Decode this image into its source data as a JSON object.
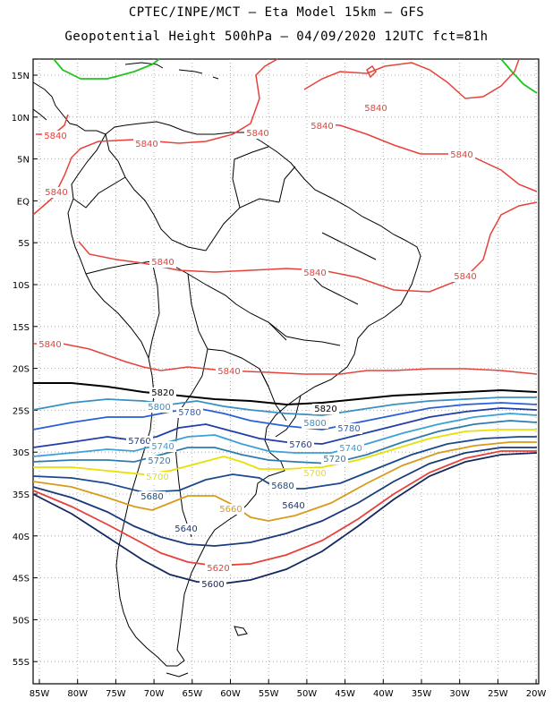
{
  "header": {
    "line1": "CPTEC/INPE/MCT –  Eta Model 15km – GFS",
    "line2": "Geopotential Height 500hPa – 04/09/2020 12UTC fct=81h"
  },
  "axes": {
    "lat_labels": [
      "15N",
      "10N",
      "5N",
      "EQ",
      "5S",
      "10S",
      "15S",
      "20S",
      "25S",
      "30S",
      "35S",
      "40S",
      "45S",
      "50S",
      "55S"
    ],
    "lon_labels": [
      "85W",
      "80W",
      "75W",
      "70W",
      "65W",
      "60W",
      "55W",
      "50W",
      "45W",
      "40W",
      "35W",
      "30W",
      "25W",
      "20W"
    ],
    "grid": "dotted"
  },
  "contour_labels": [
    {
      "text": "5840",
      "color": "#e8413a"
    },
    {
      "text": "5840",
      "color": "#e8413a"
    },
    {
      "text": "5840",
      "color": "#e8413a"
    },
    {
      "text": "5840",
      "color": "#e8413a"
    },
    {
      "text": "5840",
      "color": "#e8413a"
    },
    {
      "text": "5840",
      "color": "#e8413a"
    },
    {
      "text": "5840",
      "color": "#e8413a"
    },
    {
      "text": "5840",
      "color": "#e8413a"
    },
    {
      "text": "5840",
      "color": "#e8413a"
    },
    {
      "text": "5840",
      "color": "#e8413a"
    },
    {
      "text": "5840",
      "color": "#e8413a"
    },
    {
      "text": "5840",
      "color": "#e8413a"
    },
    {
      "text": "5820",
      "color": "#000000"
    },
    {
      "text": "5820",
      "color": "#000000"
    },
    {
      "text": "5800",
      "color": "#3a8fc4"
    },
    {
      "text": "5800",
      "color": "#3a8fc4"
    },
    {
      "text": "5780",
      "color": "#2a5fd8"
    },
    {
      "text": "5780",
      "color": "#2a5fd8"
    },
    {
      "text": "5760",
      "color": "#1f3ea8"
    },
    {
      "text": "5760",
      "color": "#1f3ea8"
    },
    {
      "text": "5740",
      "color": "#3aa0d8"
    },
    {
      "text": "5740",
      "color": "#3aa0d8"
    },
    {
      "text": "5720",
      "color": "#2e7cae"
    },
    {
      "text": "5720",
      "color": "#2e7cae"
    },
    {
      "text": "5700",
      "color": "#e8e000"
    },
    {
      "text": "5700",
      "color": "#e8e000"
    },
    {
      "text": "5680",
      "color": "#1a4a8a"
    },
    {
      "text": "5680",
      "color": "#1a4a8a"
    },
    {
      "text": "5660",
      "color": "#d99a1a"
    },
    {
      "text": "5640",
      "color": "#1a3a7a"
    },
    {
      "text": "5640",
      "color": "#1a3a7a"
    },
    {
      "text": "5620",
      "color": "#e8413a"
    },
    {
      "text": "5600",
      "color": "#14285e"
    }
  ],
  "colors": {
    "c5840": "#e8413a",
    "c5820": "#000000",
    "c5800": "#3a8fc4",
    "c5780": "#2a5fd8",
    "c5760": "#1f3ea8",
    "c5740": "#3aa0d8",
    "c5720": "#2e7cae",
    "c5700": "#e8e000",
    "c5680": "#1a4a8a",
    "c5660": "#d99a1a",
    "c5640": "#1a3a7a",
    "c5620": "#e8413a",
    "c5600": "#14285e",
    "green_contour": "#22c422",
    "coastline": "#000000"
  }
}
